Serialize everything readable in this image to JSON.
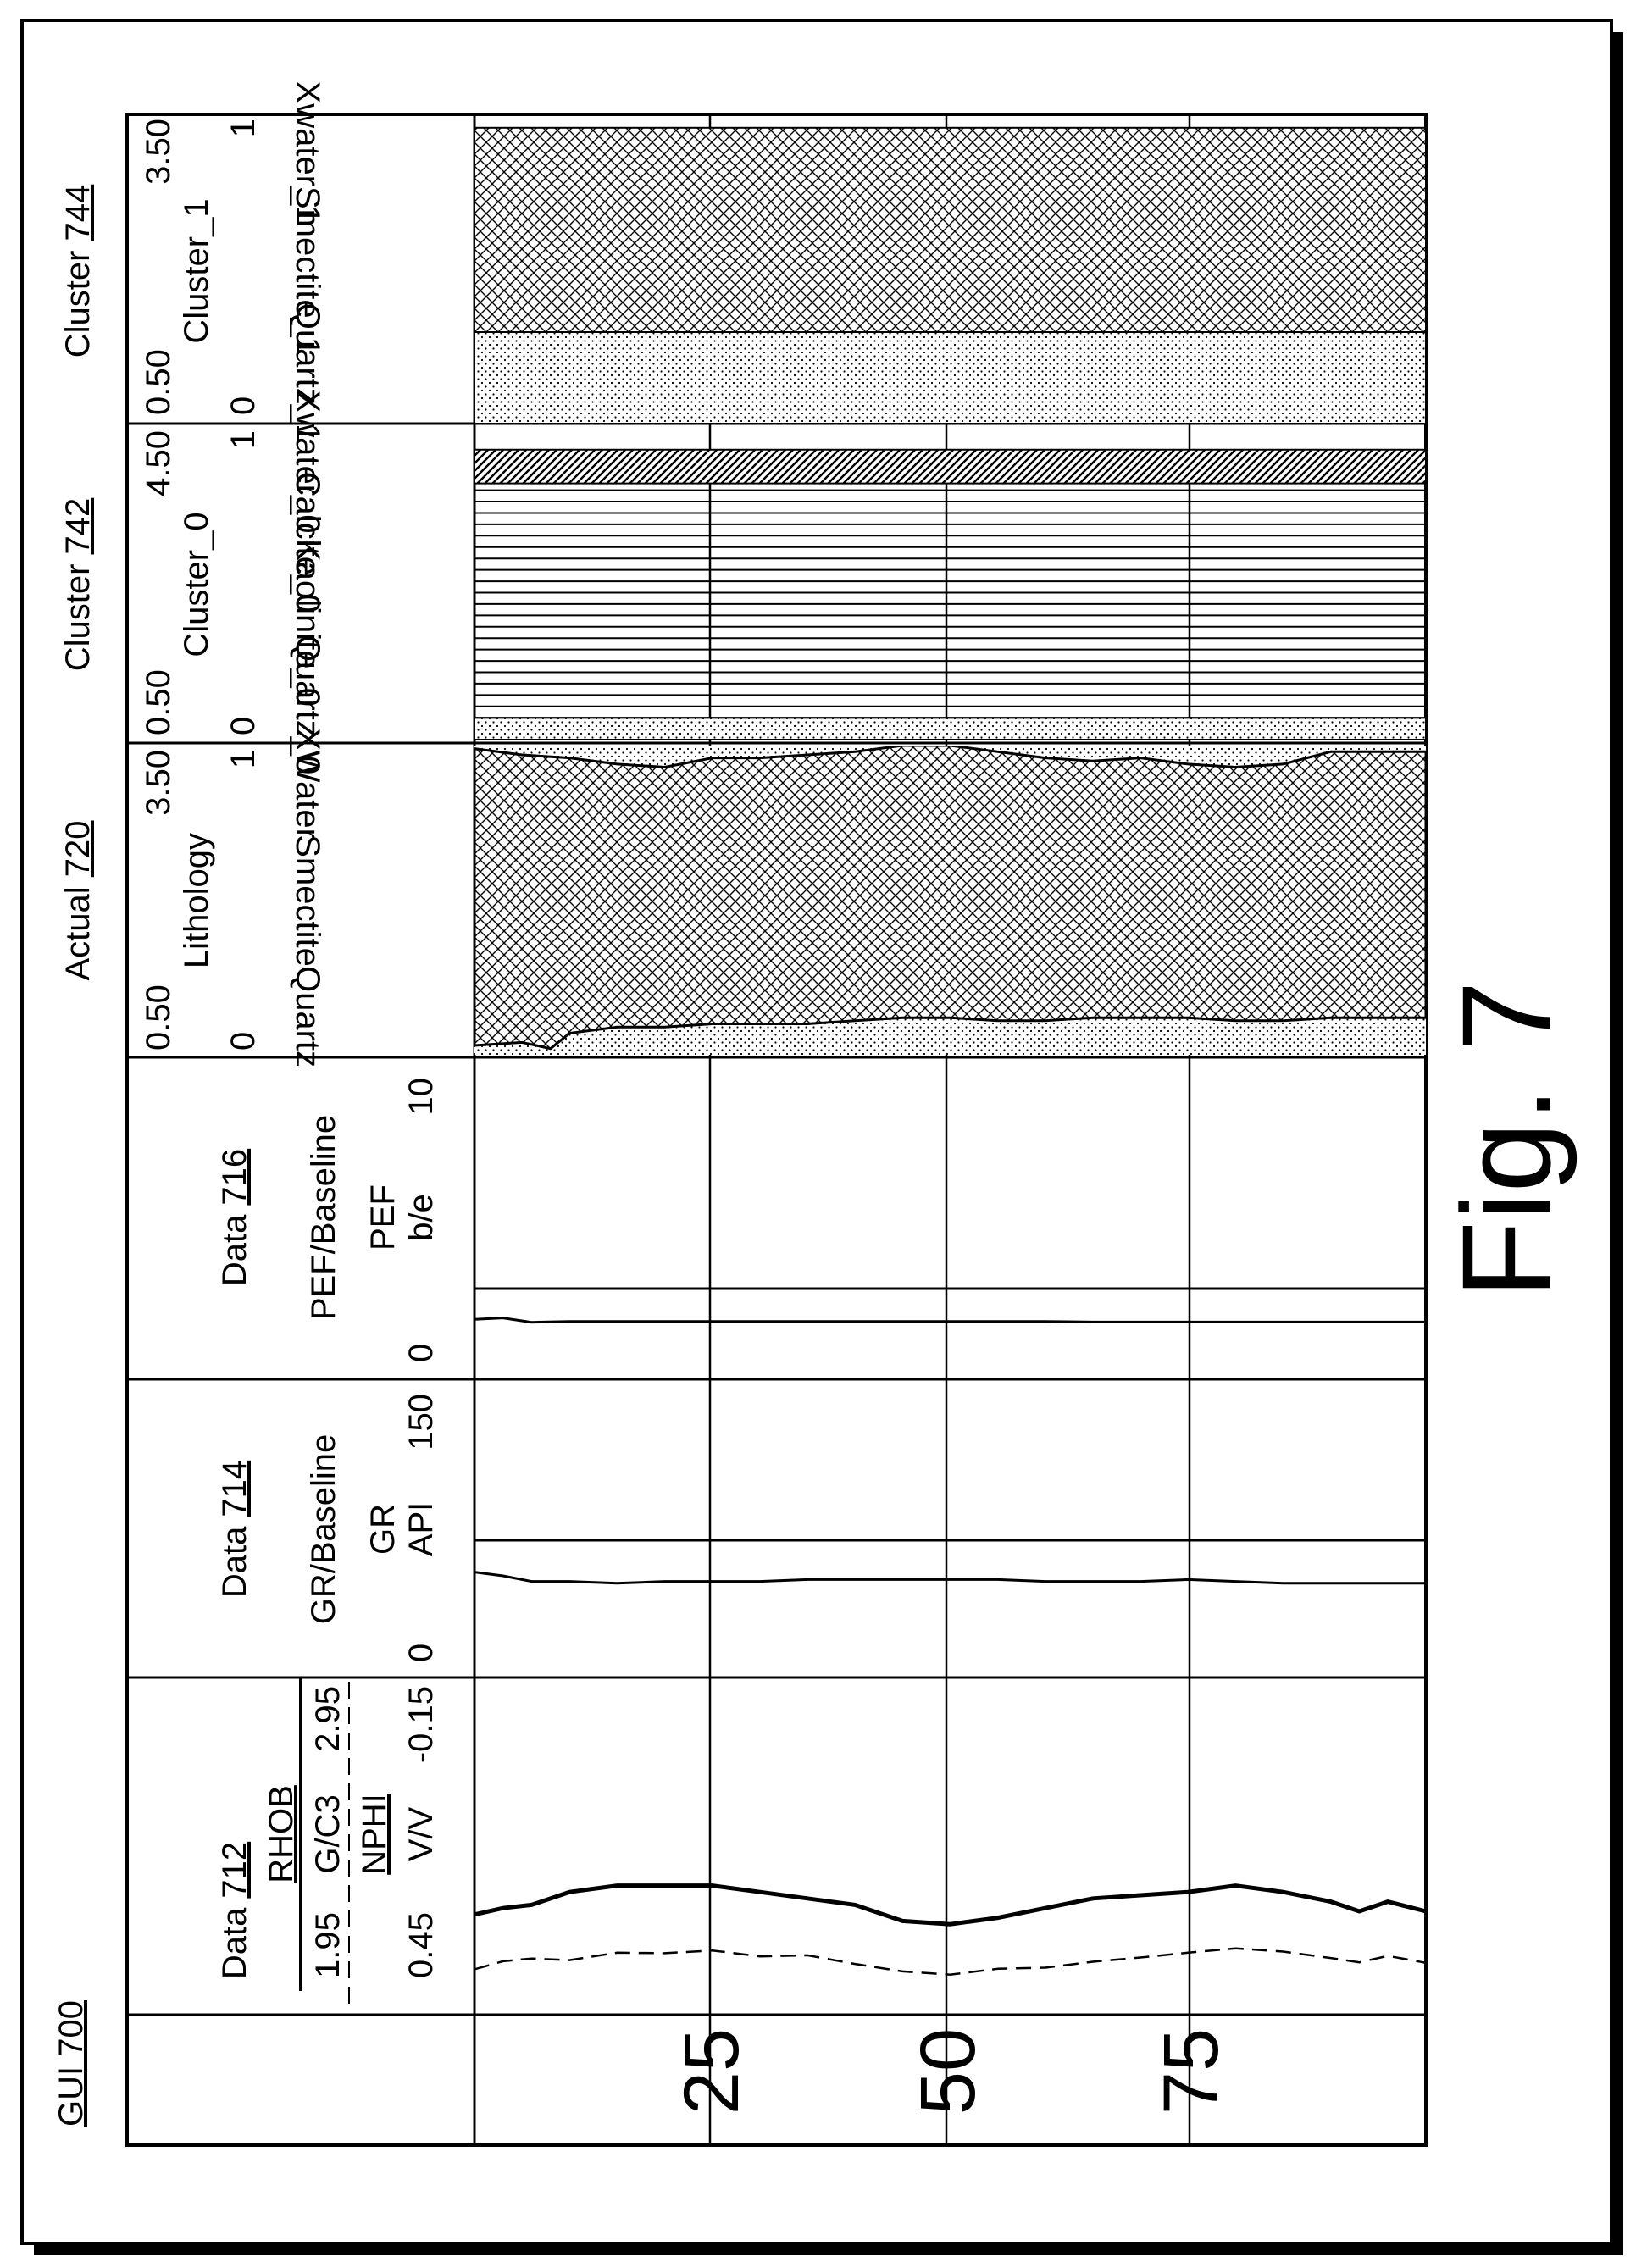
{
  "gui_label": "GUI 700",
  "figure_label": "Fig. 7",
  "depth_ticks": [
    "25",
    "50",
    "75"
  ],
  "tracks": {
    "data712": {
      "title_prefix": "Data ",
      "ref": "712",
      "rhob": {
        "name": "RHOB",
        "unit": "G/C3",
        "min": "1.95",
        "max": "2.95"
      },
      "nphi": {
        "name": "NPHI",
        "unit": "V/V",
        "min": "0.45",
        "max": "-0.15"
      }
    },
    "data714": {
      "title_prefix": "Data ",
      "ref": "714",
      "subtitle": "GR/Baseline",
      "curve": "GR",
      "unit": "API",
      "min": "0",
      "max": "150"
    },
    "data716": {
      "title_prefix": "Data ",
      "ref": "716",
      "subtitle": "PEF/Baseline",
      "curve": "PEF",
      "unit": "b/e",
      "min": "0",
      "max": "10"
    },
    "actual720": {
      "title_prefix": "Actual ",
      "ref": "720",
      "subtitle": "Lithology",
      "scale_min": "0.50",
      "scale_max": "3.50",
      "frac_min": "0",
      "frac_max": "1",
      "components": [
        "Quartz",
        "Smectite",
        "XWater"
      ]
    },
    "cluster742": {
      "title_prefix": "Cluster ",
      "ref": "742",
      "subtitle": "Cluster_0",
      "scale_min": "0.50",
      "scale_max": "4.50",
      "frac_min": "0",
      "frac_max": "1",
      "components": [
        "Quartz_0",
        "Kaolinite_0",
        "Calcite_0",
        "Xwater_0"
      ]
    },
    "cluster744": {
      "title_prefix": "Cluster ",
      "ref": "744",
      "subtitle": "Cluster_1",
      "scale_min": "0.50",
      "scale_max": "3.50",
      "frac_min": "0",
      "frac_max": "1",
      "components": [
        "Quartz_1",
        "Smectite_1",
        "Xwater_1"
      ]
    }
  },
  "curves": {
    "rhob_gcc": [
      [
        0,
        2.24
      ],
      [
        3,
        2.26
      ],
      [
        6,
        2.27
      ],
      [
        10,
        2.31
      ],
      [
        15,
        2.33
      ],
      [
        20,
        2.33
      ],
      [
        25,
        2.33
      ],
      [
        30,
        2.31
      ],
      [
        35,
        2.29
      ],
      [
        40,
        2.27
      ],
      [
        45,
        2.22
      ],
      [
        50,
        2.21
      ],
      [
        55,
        2.23
      ],
      [
        60,
        2.26
      ],
      [
        65,
        2.29
      ],
      [
        70,
        2.3
      ],
      [
        75,
        2.31
      ],
      [
        80,
        2.33
      ],
      [
        85,
        2.31
      ],
      [
        90,
        2.28
      ],
      [
        93,
        2.25
      ],
      [
        96,
        2.28
      ],
      [
        100,
        2.25
      ]
    ],
    "nphi_vv": [
      [
        0,
        0.378
      ],
      [
        3,
        0.363
      ],
      [
        6,
        0.358
      ],
      [
        10,
        0.361
      ],
      [
        15,
        0.347
      ],
      [
        20,
        0.348
      ],
      [
        25,
        0.343
      ],
      [
        30,
        0.354
      ],
      [
        35,
        0.352
      ],
      [
        40,
        0.368
      ],
      [
        45,
        0.382
      ],
      [
        50,
        0.388
      ],
      [
        55,
        0.377
      ],
      [
        60,
        0.375
      ],
      [
        65,
        0.364
      ],
      [
        70,
        0.356
      ],
      [
        75,
        0.347
      ],
      [
        80,
        0.339
      ],
      [
        85,
        0.345
      ],
      [
        90,
        0.357
      ],
      [
        93,
        0.365
      ],
      [
        96,
        0.353
      ],
      [
        100,
        0.366
      ]
    ],
    "gr_api": [
      [
        0,
        52
      ],
      [
        3,
        50
      ],
      [
        6,
        47
      ],
      [
        10,
        47
      ],
      [
        15,
        46
      ],
      [
        20,
        47
      ],
      [
        25,
        47
      ],
      [
        30,
        47
      ],
      [
        35,
        48
      ],
      [
        40,
        48
      ],
      [
        45,
        48
      ],
      [
        50,
        48
      ],
      [
        55,
        48
      ],
      [
        60,
        47
      ],
      [
        65,
        47
      ],
      [
        70,
        47
      ],
      [
        75,
        48
      ],
      [
        80,
        47
      ],
      [
        85,
        46
      ],
      [
        90,
        46
      ],
      [
        95,
        46
      ],
      [
        100,
        46
      ]
    ],
    "pef_be": [
      [
        0,
        1.55
      ],
      [
        3,
        1.6
      ],
      [
        6,
        1.45
      ],
      [
        10,
        1.48
      ],
      [
        15,
        1.48
      ],
      [
        20,
        1.48
      ],
      [
        25,
        1.48
      ],
      [
        30,
        1.48
      ],
      [
        35,
        1.48
      ],
      [
        40,
        1.48
      ],
      [
        45,
        1.48
      ],
      [
        50,
        1.48
      ],
      [
        55,
        1.48
      ],
      [
        60,
        1.48
      ],
      [
        65,
        1.46
      ],
      [
        70,
        1.46
      ],
      [
        75,
        1.46
      ],
      [
        80,
        1.46
      ],
      [
        85,
        1.46
      ],
      [
        90,
        1.46
      ],
      [
        95,
        1.46
      ],
      [
        100,
        1.46
      ]
    ],
    "actual_quartz_frac": [
      [
        0,
        0.03
      ],
      [
        5,
        0.04
      ],
      [
        8,
        0.02
      ],
      [
        10,
        0.07
      ],
      [
        15,
        0.09
      ],
      [
        20,
        0.09
      ],
      [
        25,
        0.1
      ],
      [
        30,
        0.1
      ],
      [
        35,
        0.1
      ],
      [
        40,
        0.11
      ],
      [
        45,
        0.12
      ],
      [
        50,
        0.12
      ],
      [
        55,
        0.11
      ],
      [
        60,
        0.11
      ],
      [
        65,
        0.12
      ],
      [
        70,
        0.12
      ],
      [
        75,
        0.12
      ],
      [
        80,
        0.11
      ],
      [
        85,
        0.11
      ],
      [
        90,
        0.12
      ],
      [
        95,
        0.12
      ],
      [
        100,
        0.12
      ]
    ],
    "actual_smectite_top_frac": [
      [
        0,
        0.99
      ],
      [
        5,
        0.97
      ],
      [
        10,
        0.96
      ],
      [
        15,
        0.94
      ],
      [
        20,
        0.93
      ],
      [
        25,
        0.96
      ],
      [
        30,
        0.96
      ],
      [
        35,
        0.97
      ],
      [
        40,
        0.98
      ],
      [
        45,
        1.0
      ],
      [
        50,
        1.0
      ],
      [
        55,
        0.98
      ],
      [
        60,
        0.96
      ],
      [
        65,
        0.95
      ],
      [
        70,
        0.96
      ],
      [
        75,
        0.94
      ],
      [
        80,
        0.93
      ],
      [
        85,
        0.94
      ],
      [
        90,
        0.98
      ],
      [
        95,
        0.98
      ],
      [
        100,
        0.98
      ]
    ]
  },
  "clusters": {
    "quartz_0_frac": 0.07,
    "kaolinite_0_top_frac": 0.8,
    "xwater_0_top_frac": 0.93,
    "quartz_1_frac": 0.3,
    "smectite_1_top_frac": 0.97
  },
  "colors": {
    "ink": "#000000",
    "background": "#ffffff"
  }
}
